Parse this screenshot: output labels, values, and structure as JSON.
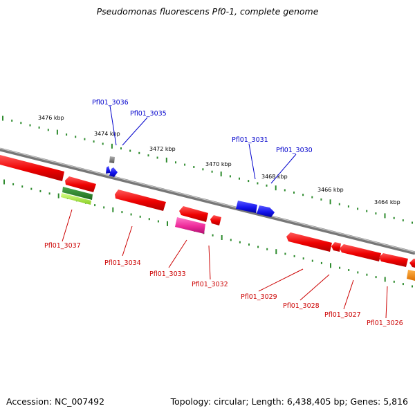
{
  "title": "Pseudomonas fluorescens Pf0-1, complete genome",
  "footer": {
    "accession": "Accession: NC_007492",
    "summary": "Topology: circular; Length: 6,438,405 bp; Genes: 5,816"
  },
  "colors": {
    "backbone": "#8c8c8c",
    "tick_dots": "#2e8b2e",
    "forward_label": "#0000cc",
    "reverse_label": "#cc0000",
    "gene_red": "#ff0000",
    "gene_blue": "#1515ee",
    "gene_green": "#2a8a2a",
    "gene_lime": "#a8ee44",
    "gene_magenta": "#ee2a9a",
    "gene_orange": "#ff8c00",
    "gene_gray": "#8a8a8a"
  },
  "ticks": [
    "3476 kbp",
    "3474 kbp",
    "3472 kbp",
    "3470 kbp",
    "3468 kbp",
    "3466 kbp",
    "3464 kbp"
  ],
  "forward_genes": [
    "Pfl01_3036",
    "Pfl01_3035",
    "Pfl01_3031",
    "Pfl01_3030"
  ],
  "reverse_genes": [
    "Pfl01_3037",
    "Pfl01_3034",
    "Pfl01_3033",
    "Pfl01_3032",
    "Pfl01_3029",
    "Pfl01_3028",
    "Pfl01_3027",
    "Pfl01_3026"
  ]
}
